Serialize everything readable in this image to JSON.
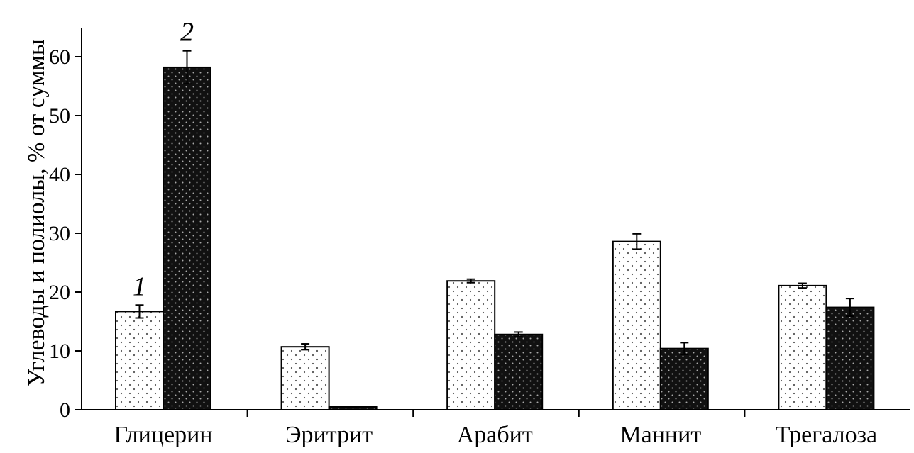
{
  "chart_data": {
    "type": "bar",
    "title": "",
    "xlabel": "",
    "ylabel": "Углеводы и полиолы, % от суммы",
    "categories": [
      "Глицерин",
      "Эритрит",
      "Арабит",
      "Маннит",
      "Трегалоза"
    ],
    "series": [
      {
        "name": "1",
        "pattern": "light-dotted",
        "fill_color": "#ffffff",
        "dot_color": "#555555",
        "values": [
          16.7,
          10.7,
          21.9,
          28.6,
          21.1
        ],
        "errors": [
          1.1,
          0.5,
          0.3,
          1.3,
          0.4
        ]
      },
      {
        "name": "2",
        "pattern": "dark-dotted",
        "fill_color": "#111111",
        "dot_color": "#aaaaaa",
        "values": [
          58.2,
          0.5,
          12.8,
          10.4,
          17.4
        ],
        "errors": [
          2.8,
          0.1,
          0.4,
          1.0,
          1.5
        ]
      }
    ],
    "ylim": [
      0,
      65
    ],
    "yticks": [
      0,
      10,
      20,
      30,
      40,
      50,
      60
    ],
    "grid": false,
    "legend": "none"
  }
}
